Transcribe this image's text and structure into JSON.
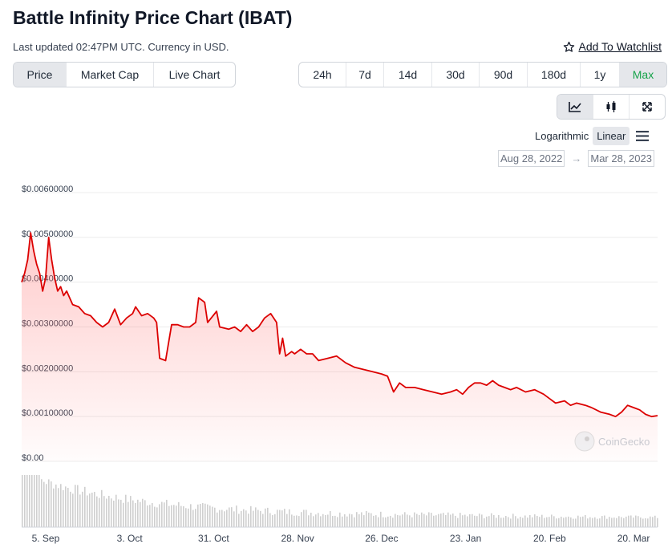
{
  "header": {
    "title": "Battle Infinity Price Chart (IBAT)",
    "updated": "Last updated 02:47PM UTC. Currency in USD.",
    "watchlist": "Add To Watchlist"
  },
  "tabs": [
    "Price",
    "Market Cap",
    "Live Chart"
  ],
  "ranges": [
    "24h",
    "7d",
    "14d",
    "30d",
    "90d",
    "180d",
    "1y",
    "Max"
  ],
  "scale": {
    "log": "Logarithmic",
    "linear": "Linear"
  },
  "dates": {
    "from": "Aug 28, 2022",
    "to": "Mar 28, 2023",
    "arrow": "→"
  },
  "watermark": "CoinGecko",
  "colors": {
    "line": "#dc0000",
    "accent": "#16a34a",
    "volume": "#cfcfcf"
  },
  "chart_data": {
    "type": "area",
    "title": "",
    "xlabel": "",
    "ylabel": "",
    "ylim": [
      0,
      0.006
    ],
    "y_ticks": [
      0,
      0.001,
      0.002,
      0.003,
      0.004,
      0.005,
      0.006
    ],
    "y_tick_labels": [
      "$0.00",
      "$0.00100000",
      "$0.00200000",
      "$0.00300000",
      "$0.00400000",
      "$0.00500000",
      "$0.00600000"
    ],
    "x_range": [
      "2022-08-28",
      "2023-03-28"
    ],
    "x_ticks": [
      "2022-09-05",
      "2022-10-03",
      "2022-10-31",
      "2022-11-28",
      "2022-12-26",
      "2023-01-23",
      "2023-02-20",
      "2023-03-20"
    ],
    "x_tick_labels": [
      "5. Sep",
      "3. Oct",
      "31. Oct",
      "28. Nov",
      "26. Dec",
      "23. Jan",
      "20. Feb",
      "20. Mar"
    ],
    "grid": true,
    "series": [
      {
        "values": [
          [
            "2022-08-28",
            0.004
          ],
          [
            "2022-08-29",
            0.0042
          ],
          [
            "2022-08-30",
            0.0045
          ],
          [
            "2022-08-31",
            0.0051
          ],
          [
            "2022-09-01",
            0.0047
          ],
          [
            "2022-09-02",
            0.0044
          ],
          [
            "2022-09-03",
            0.0042
          ],
          [
            "2022-09-04",
            0.0038
          ],
          [
            "2022-09-05",
            0.0041
          ],
          [
            "2022-09-06",
            0.005
          ],
          [
            "2022-09-07",
            0.0045
          ],
          [
            "2022-09-08",
            0.0041
          ],
          [
            "2022-09-09",
            0.0038
          ],
          [
            "2022-09-10",
            0.0039
          ],
          [
            "2022-09-11",
            0.0037
          ],
          [
            "2022-09-12",
            0.0038
          ],
          [
            "2022-09-14",
            0.0035
          ],
          [
            "2022-09-16",
            0.00345
          ],
          [
            "2022-09-18",
            0.0033
          ],
          [
            "2022-09-20",
            0.00325
          ],
          [
            "2022-09-22",
            0.0031
          ],
          [
            "2022-09-24",
            0.003
          ],
          [
            "2022-09-26",
            0.0031
          ],
          [
            "2022-09-28",
            0.0034
          ],
          [
            "2022-09-30",
            0.00305
          ],
          [
            "2022-10-02",
            0.0032
          ],
          [
            "2022-10-04",
            0.0033
          ],
          [
            "2022-10-05",
            0.00345
          ],
          [
            "2022-10-07",
            0.00325
          ],
          [
            "2022-10-09",
            0.0033
          ],
          [
            "2022-10-11",
            0.0032
          ],
          [
            "2022-10-12",
            0.0031
          ],
          [
            "2022-10-13",
            0.0023
          ],
          [
            "2022-10-15",
            0.00225
          ],
          [
            "2022-10-17",
            0.00305
          ],
          [
            "2022-10-19",
            0.00305
          ],
          [
            "2022-10-21",
            0.003
          ],
          [
            "2022-10-23",
            0.003
          ],
          [
            "2022-10-25",
            0.0031
          ],
          [
            "2022-10-26",
            0.00365
          ],
          [
            "2022-10-28",
            0.00355
          ],
          [
            "2022-10-29",
            0.0031
          ],
          [
            "2022-11-01",
            0.00335
          ],
          [
            "2022-11-02",
            0.003
          ],
          [
            "2022-11-05",
            0.00295
          ],
          [
            "2022-11-07",
            0.003
          ],
          [
            "2022-11-09",
            0.0029
          ],
          [
            "2022-11-11",
            0.00305
          ],
          [
            "2022-11-13",
            0.0029
          ],
          [
            "2022-11-15",
            0.003
          ],
          [
            "2022-11-17",
            0.0032
          ],
          [
            "2022-11-19",
            0.0033
          ],
          [
            "2022-11-21",
            0.0031
          ],
          [
            "2022-11-22",
            0.0024
          ],
          [
            "2022-11-23",
            0.00275
          ],
          [
            "2022-11-24",
            0.00235
          ],
          [
            "2022-11-26",
            0.00245
          ],
          [
            "2022-11-27",
            0.0024
          ],
          [
            "2022-11-29",
            0.0025
          ],
          [
            "2022-12-01",
            0.0024
          ],
          [
            "2022-12-03",
            0.0024
          ],
          [
            "2022-12-05",
            0.00225
          ],
          [
            "2022-12-08",
            0.0023
          ],
          [
            "2022-12-11",
            0.00235
          ],
          [
            "2022-12-14",
            0.0022
          ],
          [
            "2022-12-17",
            0.0021
          ],
          [
            "2022-12-20",
            0.00205
          ],
          [
            "2022-12-23",
            0.002
          ],
          [
            "2022-12-26",
            0.00195
          ],
          [
            "2022-12-28",
            0.0019
          ],
          [
            "2022-12-30",
            0.00155
          ],
          [
            "2023-01-01",
            0.00175
          ],
          [
            "2023-01-03",
            0.00165
          ],
          [
            "2023-01-06",
            0.00165
          ],
          [
            "2023-01-09",
            0.0016
          ],
          [
            "2023-01-12",
            0.00155
          ],
          [
            "2023-01-15",
            0.0015
          ],
          [
            "2023-01-18",
            0.00155
          ],
          [
            "2023-01-20",
            0.0016
          ],
          [
            "2023-01-22",
            0.0015
          ],
          [
            "2023-01-24",
            0.00165
          ],
          [
            "2023-01-26",
            0.00175
          ],
          [
            "2023-01-28",
            0.00175
          ],
          [
            "2023-01-30",
            0.0017
          ],
          [
            "2023-02-01",
            0.0018
          ],
          [
            "2023-02-03",
            0.0017
          ],
          [
            "2023-02-05",
            0.00165
          ],
          [
            "2023-02-07",
            0.0016
          ],
          [
            "2023-02-09",
            0.00165
          ],
          [
            "2023-02-12",
            0.00155
          ],
          [
            "2023-02-15",
            0.0016
          ],
          [
            "2023-02-18",
            0.0015
          ],
          [
            "2023-02-20",
            0.0014
          ],
          [
            "2023-02-22",
            0.0013
          ],
          [
            "2023-02-25",
            0.00135
          ],
          [
            "2023-02-27",
            0.00125
          ],
          [
            "2023-03-01",
            0.0013
          ],
          [
            "2023-03-04",
            0.00125
          ],
          [
            "2023-03-06",
            0.0012
          ],
          [
            "2023-03-09",
            0.0011
          ],
          [
            "2023-03-12",
            0.00105
          ],
          [
            "2023-03-14",
            0.001
          ],
          [
            "2023-03-16",
            0.0011
          ],
          [
            "2023-03-18",
            0.00125
          ],
          [
            "2023-03-20",
            0.0012
          ],
          [
            "2023-03-22",
            0.00115
          ],
          [
            "2023-03-24",
            0.00105
          ],
          [
            "2023-03-26",
            0.001
          ],
          [
            "2023-03-28",
            0.00102
          ]
        ]
      }
    ]
  }
}
